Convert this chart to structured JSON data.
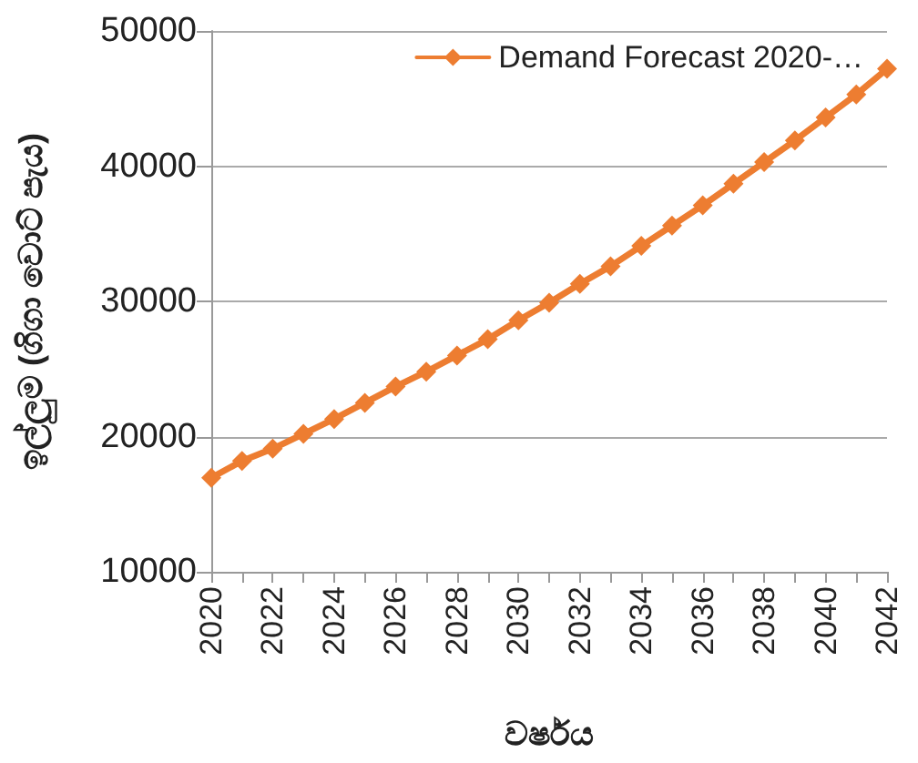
{
  "chart_data": {
    "type": "line",
    "xlabel": "වර්ෂය",
    "ylabel": "ඉල්ලුම (ගිගා වොට් පැය)",
    "categories": [
      "2020",
      null,
      "2022",
      null,
      "2024",
      null,
      "2026",
      null,
      "2028",
      null,
      "2030",
      null,
      "2032",
      null,
      "2034",
      null,
      "2036",
      null,
      "2038",
      null,
      "2040",
      null,
      "2042"
    ],
    "series": [
      {
        "name": "Demand Forecast 2020-…",
        "color": "#ed7d31",
        "values": [
          16950,
          18200,
          19100,
          20200,
          21300,
          22500,
          23700,
          24800,
          26000,
          27200,
          28600,
          29900,
          31300,
          32600,
          34100,
          35600,
          37100,
          38700,
          40300,
          41900,
          43600,
          45300,
          47200
        ]
      }
    ],
    "ylim": [
      10000,
      50000
    ],
    "yticks": [
      10000,
      20000,
      30000,
      40000,
      50000
    ],
    "grid": "y",
    "legend": "top right",
    "marker": "diamond",
    "line_style": "solid"
  }
}
